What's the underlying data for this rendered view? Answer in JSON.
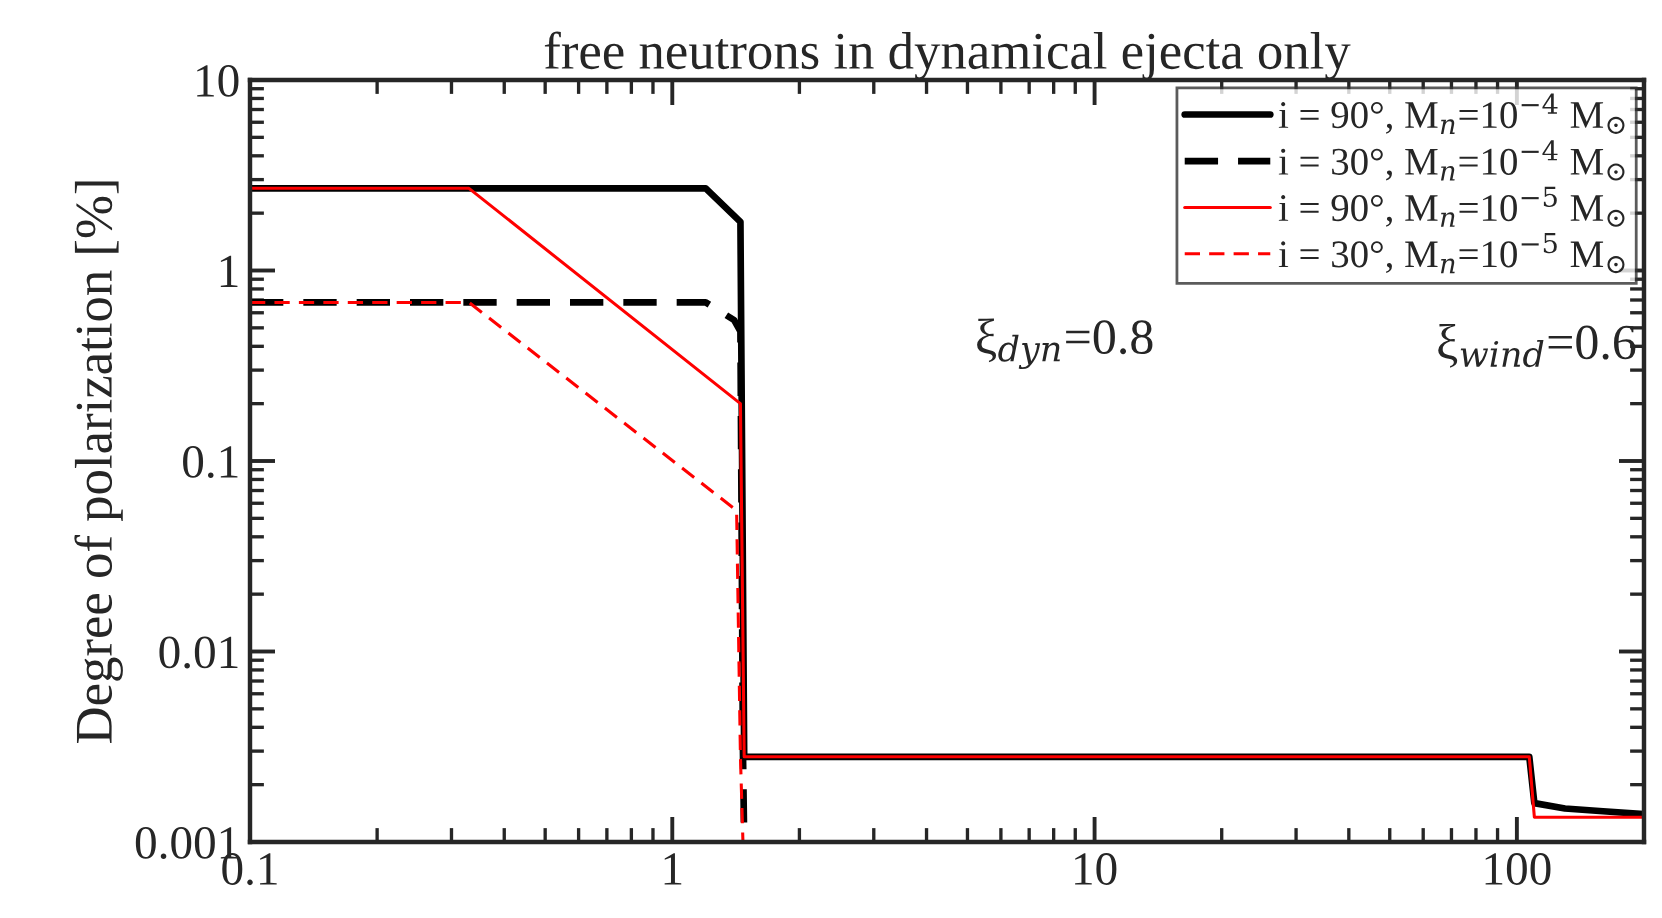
{
  "chart_data": {
    "type": "line",
    "title": "free neutrons in dynamical ejecta only",
    "ylabel": "Degree of polarization [%]",
    "log": "xy",
    "xlim": [
      0.1,
      200
    ],
    "ylim": [
      0.001,
      10
    ],
    "xticks": [
      0.1,
      1,
      10,
      100
    ],
    "yticks": [
      0.001,
      0.01,
      0.1,
      1,
      10
    ],
    "legend": "top right",
    "grid": false,
    "annotations": [
      "ξ$_{dyn}$=0.8",
      "ξ$_{wind}$=0.6"
    ],
    "series": [
      {
        "name": "i = 90°, M$_{n}$=10$^{−4}$ M$_{⊙}$",
        "color": "#000000",
        "line_style": "solid",
        "x": [
          0.1,
          1.2,
          1.45,
          1.48,
          1.5,
          107,
          110,
          130,
          160,
          200
        ],
        "values": [
          2.7,
          2.7,
          1.8,
          0.0028,
          0.0028,
          0.0028,
          0.0016,
          0.0015,
          0.00145,
          0.0014
        ]
      },
      {
        "name": "i = 30°, M$_{n}$=10$^{−4}$ M$_{⊙}$",
        "color": "#000000",
        "line_style": "dashed",
        "x": [
          0.1,
          1.2,
          1.4,
          1.45,
          1.47,
          1.48
        ],
        "values": [
          0.68,
          0.68,
          0.55,
          0.48,
          0.003,
          0.001
        ]
      },
      {
        "name": "i = 90°, M$_{n}$=10$^{−5}$ M$_{⊙}$",
        "color": "#ff0000",
        "line_style": "solid",
        "x": [
          0.1,
          0.33,
          1.45,
          1.48,
          1.5,
          107,
          110,
          200
        ],
        "values": [
          2.7,
          2.7,
          0.2,
          0.0028,
          0.0028,
          0.0028,
          0.00135,
          0.00135
        ]
      },
      {
        "name": "i = 30°, M$_{n}$=10$^{−5}$ M$_{⊙}$",
        "color": "#ff0000",
        "line_style": "dashed",
        "x": [
          0.1,
          0.33,
          1.42,
          1.45,
          1.47
        ],
        "values": [
          0.68,
          0.68,
          0.055,
          0.0028,
          0.001
        ]
      }
    ]
  }
}
